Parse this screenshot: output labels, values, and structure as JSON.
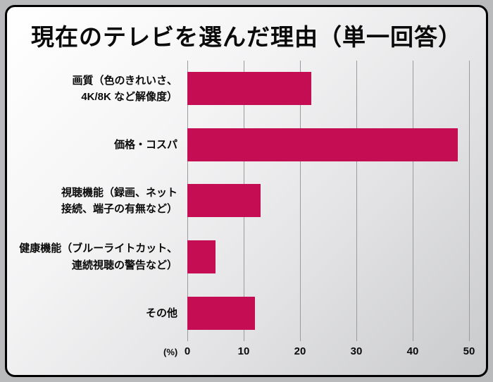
{
  "title": "現在のテレビを選んだ理由（単一回答）",
  "chart_data": {
    "type": "bar",
    "orientation": "horizontal",
    "title": "現在のテレビを選んだ理由（単一回答）",
    "categories": [
      "画質（色のきれいさ、\n4K/8K など解像度）",
      "価格・コスパ",
      "視聴機能（録画、ネット\n接続、端子の有無など）",
      "健康機能（ブルーライトカット、\n連続視聴の警告など）",
      "その他"
    ],
    "values": [
      22,
      48,
      13,
      5,
      12
    ],
    "unit_label": "(%)",
    "xlim": [
      0,
      50
    ],
    "xticks": [
      0,
      10,
      20,
      30,
      40,
      50
    ],
    "bar_color": "#C40D52",
    "grid": true,
    "legend": "none"
  }
}
